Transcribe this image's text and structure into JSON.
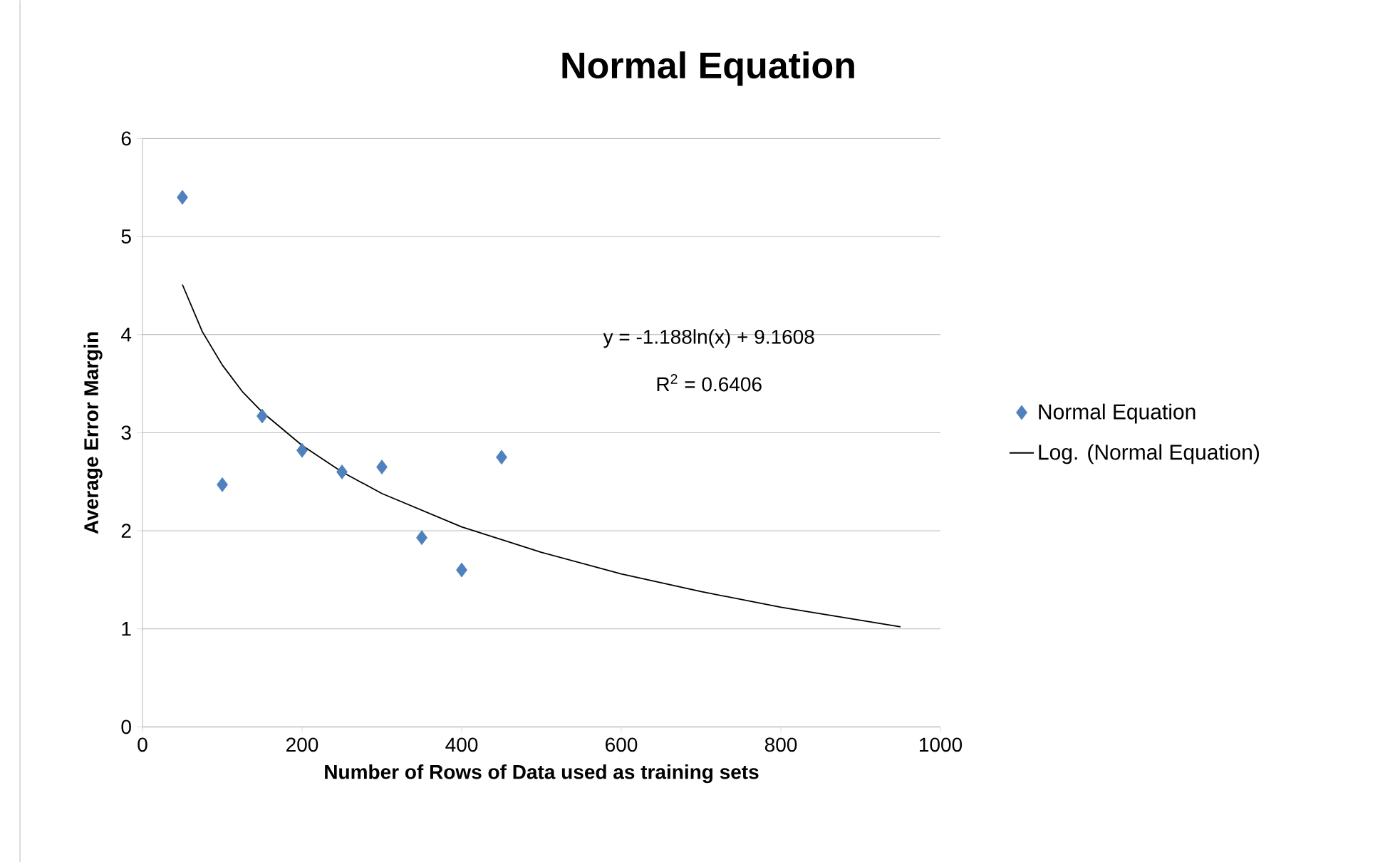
{
  "chart_data": {
    "type": "scatter",
    "title": "Normal Equation",
    "xlabel": "Number of Rows of Data used as training sets",
    "ylabel": "Average Error Margin",
    "series": [
      {
        "name": "Normal Equation",
        "color": "#4f81bd",
        "marker": "diamond",
        "x": [
          50,
          100,
          150,
          200,
          250,
          300,
          350,
          400,
          450
        ],
        "values": [
          5.4,
          2.47,
          3.17,
          2.82,
          2.6,
          2.65,
          1.93,
          1.6,
          2.75
        ]
      },
      {
        "name": "Log. (Normal Equation)",
        "type": "line",
        "color": "#000000",
        "marker": "none",
        "x": [
          50,
          75,
          100,
          125,
          150,
          200,
          250,
          300,
          400,
          500,
          600,
          700,
          800,
          950
        ],
        "values": [
          4.51,
          4.03,
          3.69,
          3.42,
          3.21,
          2.87,
          2.6,
          2.38,
          2.04,
          1.78,
          1.56,
          1.38,
          1.22,
          1.02
        ]
      }
    ],
    "annotations": [
      "y = -1.188ln(x) + 9.1608",
      "R$^{2}$ = 0.6406"
    ],
    "xlim": [
      0,
      1000
    ],
    "xticks": [
      0,
      200,
      400,
      600,
      800,
      1000
    ],
    "ylim": [
      0,
      6
    ],
    "yticks": [
      0,
      1,
      2,
      3,
      4,
      5,
      6
    ],
    "grid": "y",
    "legend": "right"
  }
}
